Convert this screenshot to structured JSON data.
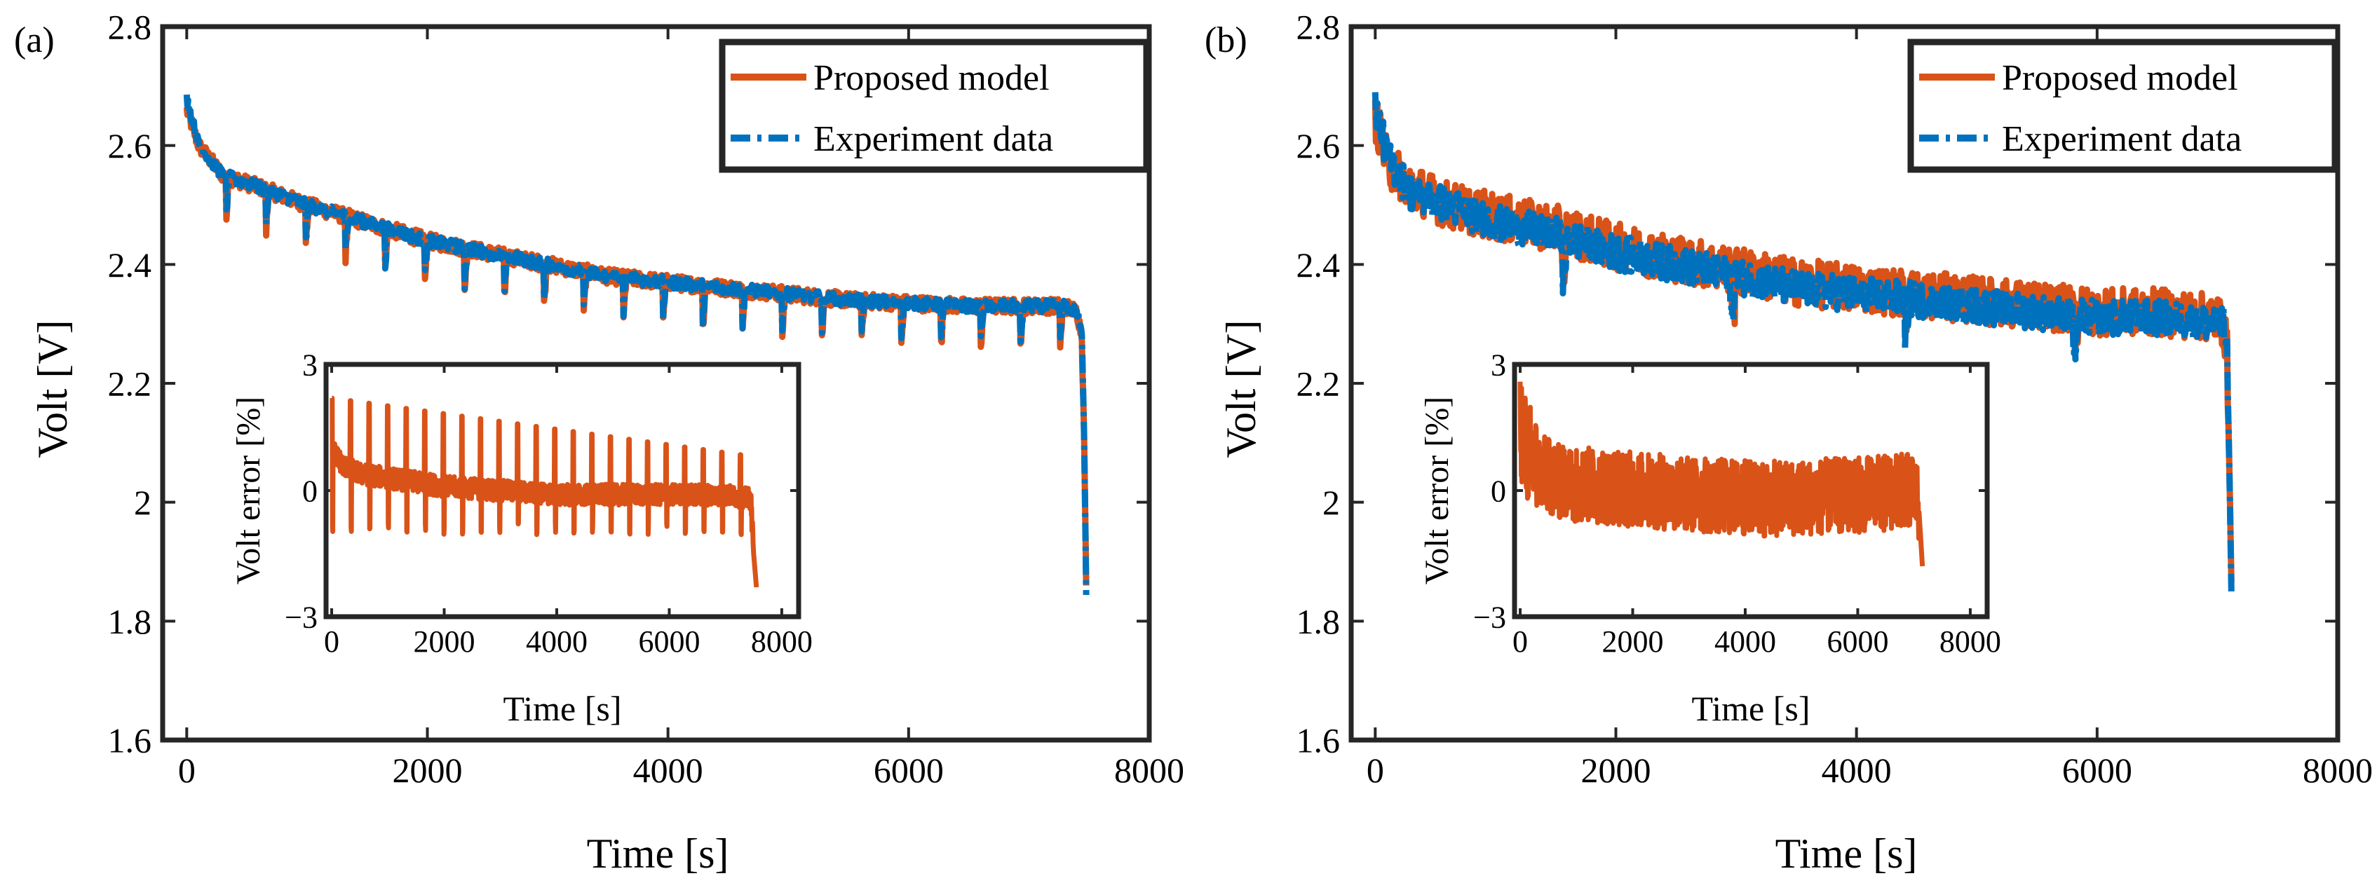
{
  "figure": {
    "colors": {
      "model": "#D95319",
      "experiment": "#0072BD",
      "axis": "#262626"
    }
  },
  "chart_data": [
    {
      "type": "line",
      "panel_label": "(a)",
      "title": "",
      "xlabel": "Time [s]",
      "ylabel": "Volt [V]",
      "xlim": [
        -200,
        8000
      ],
      "ylim": [
        1.6,
        2.8
      ],
      "xticks": [
        0,
        2000,
        4000,
        6000,
        8000
      ],
      "xtick_labels": [
        "0",
        "2000",
        "4000",
        "6000",
        "8000"
      ],
      "yticks": [
        1.6,
        1.8,
        2.0,
        2.2,
        2.4,
        2.6,
        2.8
      ],
      "ytick_labels": [
        "1.6",
        "1.8",
        "2",
        "2.2",
        "2.4",
        "2.6",
        "2.8"
      ],
      "grid": false,
      "legend": {
        "location": "top-right",
        "entries": [
          "Proposed model",
          "Experiment data"
        ]
      },
      "series": [
        {
          "name": "Proposed model",
          "style": "solid",
          "x": [
            0,
            100,
            300,
            600,
            1000,
            1500,
            2000,
            2500,
            3000,
            3500,
            4000,
            4500,
            5000,
            5500,
            6000,
            6500,
            7000,
            7300,
            7400,
            7440,
            7460,
            7480
          ],
          "y": [
            2.66,
            2.6,
            2.55,
            2.53,
            2.5,
            2.47,
            2.44,
            2.42,
            2.4,
            2.38,
            2.37,
            2.36,
            2.35,
            2.34,
            2.335,
            2.33,
            2.33,
            2.33,
            2.32,
            2.28,
            2.1,
            1.8
          ],
          "pulse_drop": 0.07,
          "ripple": 0.013
        },
        {
          "name": "Experiment data",
          "style": "dashdot",
          "x": [
            0,
            100,
            300,
            600,
            1000,
            1500,
            2000,
            2500,
            3000,
            3500,
            4000,
            4500,
            5000,
            5500,
            6000,
            6500,
            7000,
            7300,
            7400,
            7440,
            7460,
            7480
          ],
          "y": [
            2.68,
            2.6,
            2.55,
            2.53,
            2.5,
            2.47,
            2.44,
            2.42,
            2.4,
            2.38,
            2.37,
            2.36,
            2.35,
            2.34,
            2.335,
            2.33,
            2.33,
            2.33,
            2.32,
            2.28,
            2.1,
            1.78
          ],
          "pulse_drop": 0.06,
          "ripple": 0.01
        }
      ],
      "pulse_period_s": 330,
      "inset": {
        "xlabel": "Time [s]",
        "ylabel": "Volt error [%]",
        "xlim": [
          -100,
          8300
        ],
        "ylim": [
          -3,
          3
        ],
        "xticks": [
          0,
          2000,
          4000,
          6000,
          8000
        ],
        "xtick_labels": [
          "0",
          "2000",
          "4000",
          "6000",
          "8000"
        ],
        "yticks": [
          -3,
          0,
          3
        ],
        "ytick_labels": [
          "−3",
          "0",
          "3"
        ],
        "series": {
          "name": "Volt error",
          "x": [
            0,
            200,
            500,
            1000,
            2000,
            3000,
            4000,
            5000,
            6000,
            7000,
            7450,
            7500,
            7550
          ],
          "y": [
            1.0,
            0.6,
            0.4,
            0.3,
            0.1,
            0.0,
            -0.1,
            -0.1,
            -0.1,
            -0.1,
            -0.2,
            -1.5,
            -2.3
          ],
          "spike_up_start": 2.2,
          "spike_up_end": 0.8,
          "spike_down": -0.9,
          "pulse_period_s": 330,
          "end_x": 7550
        }
      }
    },
    {
      "type": "line",
      "panel_label": "(b)",
      "title": "",
      "xlabel": "Time [s]",
      "ylabel": "Volt [V]",
      "xlim": [
        -200,
        8000
      ],
      "ylim": [
        1.6,
        2.8
      ],
      "xticks": [
        0,
        2000,
        4000,
        6000,
        8000
      ],
      "xtick_labels": [
        "0",
        "2000",
        "4000",
        "6000",
        "8000"
      ],
      "yticks": [
        1.6,
        1.8,
        2.0,
        2.2,
        2.4,
        2.6,
        2.8
      ],
      "ytick_labels": [
        "1.6",
        "1.8",
        "2",
        "2.2",
        "2.4",
        "2.6",
        "2.8"
      ],
      "grid": false,
      "legend": {
        "location": "top-right",
        "entries": [
          "Proposed model",
          "Experiment data"
        ]
      },
      "series": [
        {
          "name": "Proposed model",
          "style": "solid",
          "x": [
            0,
            100,
            300,
            600,
            1000,
            1500,
            2000,
            2500,
            3000,
            3500,
            4000,
            4500,
            5000,
            5500,
            6000,
            6500,
            7000,
            7050,
            7080,
            7100,
            7120
          ],
          "y": [
            2.65,
            2.57,
            2.53,
            2.5,
            2.48,
            2.46,
            2.43,
            2.41,
            2.39,
            2.37,
            2.36,
            2.35,
            2.34,
            2.33,
            2.32,
            2.32,
            2.31,
            2.3,
            2.25,
            2.05,
            1.82
          ],
          "ripple": 0.04,
          "dips": [
            {
              "x": 1550,
              "depth": 0.07
            },
            {
              "x": 2950,
              "depth": 0.08
            },
            {
              "x": 4400,
              "depth": 0.06
            },
            {
              "x": 5800,
              "depth": 0.06
            }
          ]
        },
        {
          "name": "Experiment data",
          "style": "dashdot",
          "x": [
            0,
            100,
            300,
            600,
            1000,
            1500,
            2000,
            2500,
            3000,
            3500,
            4000,
            4500,
            5000,
            5500,
            6000,
            6500,
            7000,
            7050,
            7080,
            7100,
            7120
          ],
          "y": [
            2.67,
            2.58,
            2.52,
            2.5,
            2.47,
            2.45,
            2.42,
            2.4,
            2.38,
            2.36,
            2.35,
            2.34,
            2.33,
            2.32,
            2.31,
            2.31,
            2.3,
            2.3,
            2.25,
            2.05,
            1.8
          ],
          "ripple": 0.03,
          "dips": [
            {
              "x": 1550,
              "depth": 0.07
            },
            {
              "x": 2950,
              "depth": 0.08
            },
            {
              "x": 4400,
              "depth": 0.06
            },
            {
              "x": 5800,
              "depth": 0.06
            }
          ]
        }
      ],
      "inset": {
        "xlabel": "Time [s]",
        "ylabel": "Volt error [%]",
        "xlim": [
          -100,
          8300
        ],
        "ylim": [
          -3,
          3
        ],
        "xticks": [
          0,
          2000,
          4000,
          6000,
          8000
        ],
        "xtick_labels": [
          "0",
          "2000",
          "4000",
          "6000",
          "8000"
        ],
        "yticks": [
          -3,
          0,
          3
        ],
        "ytick_labels": [
          "−3",
          "0",
          "3"
        ],
        "series": {
          "name": "Volt error",
          "x": [
            0,
            100,
            300,
            700,
            1500,
            3000,
            4500,
            6000,
            7000,
            7080,
            7150
          ],
          "y": [
            1.6,
            1.0,
            0.5,
            0.2,
            0.1,
            -0.1,
            -0.2,
            -0.1,
            0.0,
            -0.3,
            -1.8
          ],
          "noise": 0.9,
          "end_x": 7150
        }
      }
    }
  ]
}
